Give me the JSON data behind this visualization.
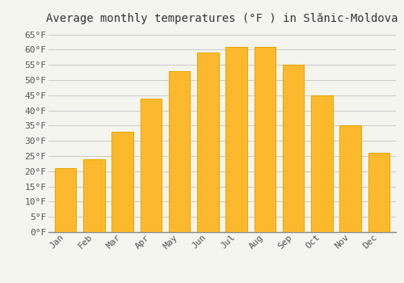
{
  "title": "Average monthly temperatures (°F ) in Slănic-Moldova",
  "months": [
    "Jan",
    "Feb",
    "Mar",
    "Apr",
    "May",
    "Jun",
    "Jul",
    "Aug",
    "Sep",
    "Oct",
    "Nov",
    "Dec"
  ],
  "values": [
    21,
    24,
    33,
    44,
    53,
    59,
    61,
    61,
    55,
    45,
    35,
    26
  ],
  "bar_color": "#FDB92E",
  "bar_edge_color": "#E8A800",
  "background_color": "#F5F5F0",
  "plot_bg_color": "#F5F5F0",
  "grid_color": "#CCCCCC",
  "ylim": [
    0,
    67
  ],
  "yticks": [
    0,
    5,
    10,
    15,
    20,
    25,
    30,
    35,
    40,
    45,
    50,
    55,
    60,
    65
  ],
  "ylabel_suffix": "°F",
  "title_fontsize": 10,
  "tick_fontsize": 8,
  "font_family": "monospace"
}
